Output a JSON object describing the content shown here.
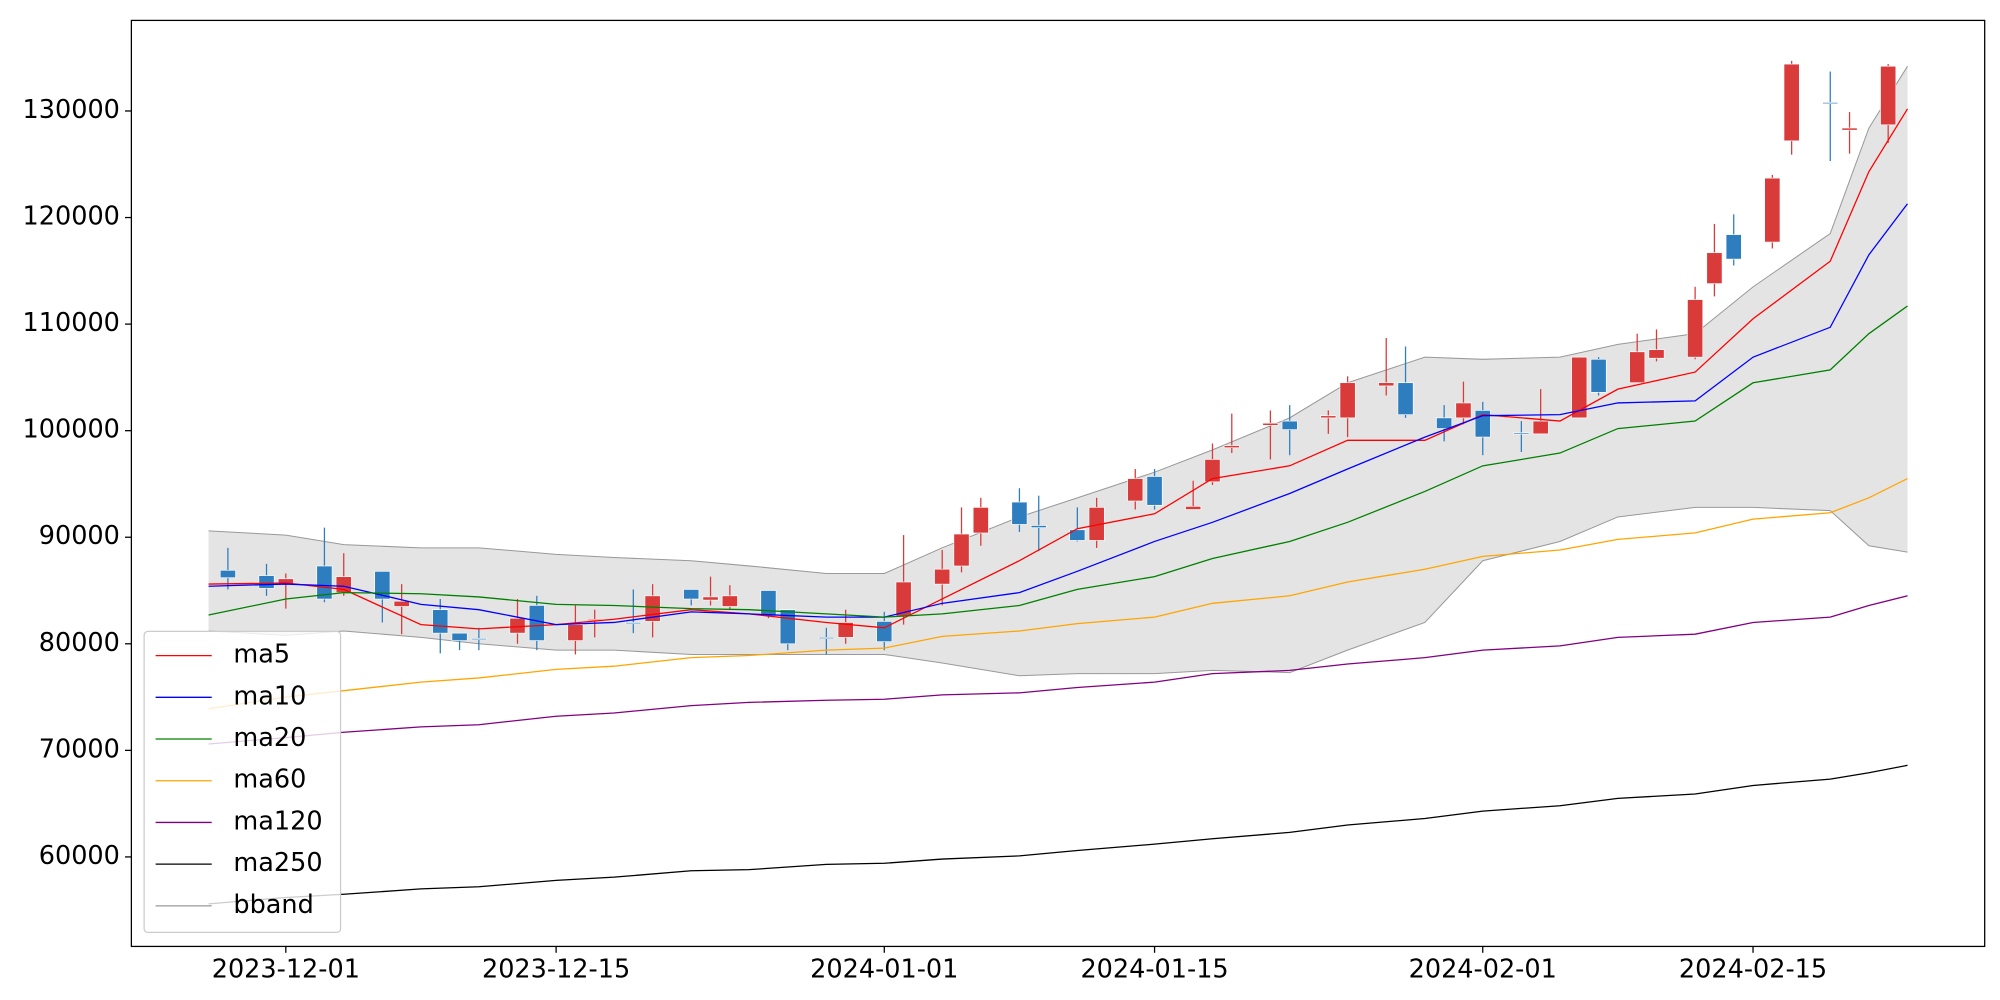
{
  "chart_data": {
    "type": "candlestick",
    "xlim": [
      "2023-11-23",
      "2024-02-27"
    ],
    "xticks": [
      "2023-12-01",
      "2023-12-15",
      "2024-01-01",
      "2024-01-15",
      "2024-02-01",
      "2024-02-15"
    ],
    "ylim": [
      51600,
      138500
    ],
    "yticks": [
      60000,
      70000,
      80000,
      90000,
      100000,
      110000,
      120000,
      130000
    ],
    "up_color": "#d93a3a",
    "down_color": "#2e7ebf",
    "x": [
      "2023-11-28",
      "2023-11-30",
      "2023-12-01",
      "2023-12-03",
      "2023-12-04",
      "2023-12-06",
      "2023-12-07",
      "2023-12-09",
      "2023-12-10",
      "2023-12-11",
      "2023-12-13",
      "2023-12-14",
      "2023-12-16",
      "2023-12-17",
      "2023-12-19",
      "2023-12-20",
      "2023-12-22",
      "2023-12-23",
      "2023-12-24",
      "2023-12-26",
      "2023-12-27",
      "2023-12-29",
      "2023-12-30",
      "2024-01-01",
      "2024-01-02",
      "2024-01-04",
      "2024-01-05",
      "2024-01-06",
      "2024-01-08",
      "2024-01-09",
      "2024-01-11",
      "2024-01-12",
      "2024-01-14",
      "2024-01-15",
      "2024-01-17",
      "2024-01-18",
      "2024-01-19",
      "2024-01-21",
      "2024-01-22",
      "2024-01-24",
      "2024-01-25",
      "2024-01-27",
      "2024-01-28",
      "2024-01-30",
      "2024-01-31",
      "2024-02-01",
      "2024-02-03",
      "2024-02-04",
      "2024-02-06",
      "2024-02-07",
      "2024-02-09",
      "2024-02-10",
      "2024-02-12",
      "2024-02-13",
      "2024-02-14",
      "2024-02-16",
      "2024-02-17",
      "2024-02-19",
      "2024-02-20",
      "2024-02-22"
    ],
    "open": [
      86900,
      86400,
      85600,
      87300,
      84800,
      86800,
      83500,
      83200,
      81000,
      80500,
      81000,
      83600,
      80300,
      82200,
      82000,
      82100,
      85100,
      84100,
      83500,
      85000,
      83200,
      80600,
      80600,
      82100,
      82600,
      85600,
      87300,
      90400,
      93300,
      91100,
      90700,
      89700,
      93400,
      95700,
      92600,
      95200,
      98400,
      100500,
      100900,
      101200,
      101200,
      104200,
      104500,
      101200,
      101200,
      101900,
      99800,
      99700,
      101200,
      106700,
      104500,
      106800,
      106900,
      113800,
      118400,
      117700,
      127200,
      130800,
      128200,
      128700
    ],
    "high": [
      89000,
      87500,
      86600,
      90900,
      88500,
      86800,
      85600,
      84200,
      81000,
      81500,
      84200,
      84500,
      83600,
      83200,
      85100,
      85600,
      85100,
      86300,
      85500,
      85000,
      83200,
      81500,
      83200,
      83000,
      90200,
      88800,
      92800,
      93700,
      94600,
      93900,
      92800,
      93700,
      96400,
      96400,
      95300,
      98800,
      101600,
      101900,
      102400,
      101900,
      105100,
      108700,
      107900,
      102400,
      104600,
      102700,
      100900,
      103900,
      106900,
      106900,
      109100,
      109500,
      113500,
      119400,
      120300,
      124000,
      134700,
      133700,
      129900,
      134400
    ],
    "low": [
      85100,
      84500,
      83300,
      83900,
      84500,
      82000,
      80900,
      79100,
      79400,
      79400,
      80000,
      79400,
      79000,
      80600,
      81000,
      80600,
      83600,
      83600,
      83200,
      82400,
      79400,
      79000,
      80000,
      79400,
      81800,
      83600,
      86700,
      89200,
      90500,
      88700,
      89600,
      89000,
      92600,
      92600,
      92600,
      94900,
      97900,
      97300,
      97700,
      99700,
      99400,
      103300,
      101200,
      99000,
      100600,
      97700,
      98000,
      99700,
      101200,
      103300,
      104500,
      106500,
      106700,
      112600,
      115500,
      117100,
      125900,
      125300,
      126000,
      127000
    ],
    "close": [
      86200,
      85200,
      86100,
      84200,
      86300,
      84200,
      84000,
      81000,
      80300,
      80400,
      82400,
      80300,
      81800,
      82300,
      81900,
      84500,
      84200,
      84400,
      84500,
      82600,
      80000,
      80500,
      82000,
      80200,
      85800,
      87000,
      90300,
      92800,
      91200,
      90900,
      89700,
      92800,
      95500,
      93000,
      92900,
      97300,
      98600,
      100700,
      100100,
      101400,
      104500,
      104500,
      101500,
      100200,
      102600,
      99400,
      99700,
      100900,
      106900,
      103600,
      107400,
      107600,
      112300,
      116700,
      116100,
      123700,
      134400,
      130700,
      128400,
      134200
    ],
    "lines": {
      "x": [
        "2023-11-27",
        "2023-12-01",
        "2023-12-04",
        "2023-12-08",
        "2023-12-11",
        "2023-12-15",
        "2023-12-18",
        "2023-12-22",
        "2023-12-25",
        "2023-12-29",
        "2024-01-01",
        "2024-01-04",
        "2024-01-08",
        "2024-01-11",
        "2024-01-15",
        "2024-01-18",
        "2024-01-22",
        "2024-01-25",
        "2024-01-29",
        "2024-02-01",
        "2024-02-05",
        "2024-02-08",
        "2024-02-12",
        "2024-02-15",
        "2024-02-19",
        "2024-02-21",
        "2024-02-23"
      ],
      "series": [
        {
          "name": "ma5",
          "color": "#ff0000",
          "values": [
            85600,
            85700,
            85100,
            81800,
            81400,
            81800,
            82300,
            83200,
            82800,
            82000,
            81500,
            84200,
            87800,
            90800,
            92200,
            95500,
            96700,
            99100,
            99100,
            101500,
            100900,
            103900,
            105500,
            110500,
            115900,
            124300,
            130200
          ]
        },
        {
          "name": "ma10",
          "color": "#0000ff",
          "values": [
            85400,
            85600,
            85400,
            83700,
            83200,
            81800,
            82000,
            83000,
            82800,
            82500,
            82500,
            83800,
            84800,
            86800,
            89600,
            91400,
            94100,
            96400,
            99400,
            101400,
            101500,
            102600,
            102800,
            106900,
            109700,
            116500,
            121300
          ]
        },
        {
          "name": "ma20",
          "color": "#008000",
          "values": [
            82700,
            84200,
            84800,
            84700,
            84400,
            83700,
            83600,
            83300,
            83200,
            82800,
            82500,
            82800,
            83600,
            85100,
            86300,
            88000,
            89600,
            91400,
            94300,
            96700,
            97900,
            100200,
            100900,
            104500,
            105700,
            109100,
            111700
          ]
        },
        {
          "name": "ma60",
          "color": "#ffa500",
          "values": [
            73900,
            75000,
            75600,
            76400,
            76800,
            77600,
            77900,
            78700,
            78900,
            79400,
            79600,
            80700,
            81200,
            81900,
            82500,
            83800,
            84500,
            85800,
            87000,
            88200,
            88800,
            89800,
            90400,
            91700,
            92300,
            93700,
            95500
          ]
        },
        {
          "name": "ma120",
          "color": "#800080",
          "values": [
            70600,
            71200,
            71700,
            72200,
            72400,
            73200,
            73500,
            74200,
            74500,
            74700,
            74800,
            75200,
            75400,
            75900,
            76400,
            77200,
            77500,
            78100,
            78700,
            79400,
            79800,
            80600,
            80900,
            82000,
            82500,
            83600,
            84500
          ]
        },
        {
          "name": "ma250",
          "color": "#000000",
          "values": [
            55600,
            56200,
            56500,
            57000,
            57200,
            57800,
            58100,
            58700,
            58800,
            59300,
            59400,
            59800,
            60100,
            60600,
            61200,
            61700,
            62300,
            63000,
            63600,
            64300,
            64800,
            65500,
            65900,
            66700,
            67300,
            67900,
            68600
          ]
        }
      ],
      "bband": {
        "name": "bband",
        "color": "#999999",
        "fill": "#e4e4e4",
        "upper": [
          90600,
          90200,
          89300,
          89000,
          89000,
          88400,
          88100,
          87800,
          87300,
          86600,
          86600,
          89000,
          91900,
          93700,
          96100,
          98200,
          101200,
          104500,
          106900,
          106700,
          106900,
          108100,
          109100,
          113500,
          118500,
          128400,
          134200
        ],
        "lower": [
          81200,
          80800,
          81200,
          80600,
          80000,
          79400,
          79400,
          79000,
          79000,
          79000,
          79000,
          78200,
          77000,
          77200,
          77200,
          77500,
          77300,
          79400,
          82000,
          87800,
          89600,
          91900,
          92800,
          92800,
          92500,
          89200,
          88600
        ]
      }
    }
  }
}
